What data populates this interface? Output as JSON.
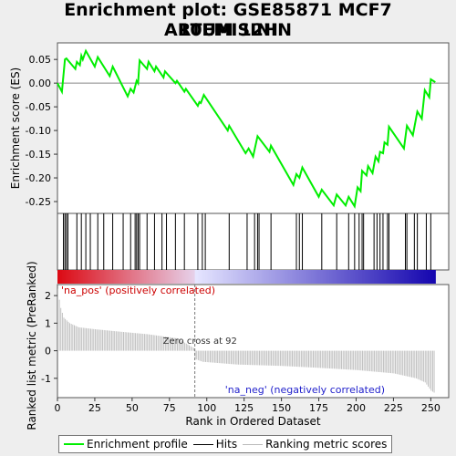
{
  "title_line1": "Enrichment plot: GSE85871 MCF7 ARTEMISININ",
  "title_line2": "10UM 12H",
  "chart_data": {
    "type": "line",
    "top_panel": {
      "ylabel": "Enrichment score (ES)",
      "ylim": [
        -0.275,
        0.085
      ],
      "yticks": [
        0.05,
        0.0,
        -0.05,
        -0.1,
        -0.15,
        -0.2,
        -0.25
      ],
      "ytick_labels": [
        "0.05",
        "0.00",
        "-0.05",
        "-0.10",
        "-0.15",
        "-0.20",
        "-0.25"
      ],
      "series_name": "Enrichment profile",
      "color": "#00ee00",
      "points": [
        [
          0,
          0.0
        ],
        [
          3,
          -0.018
        ],
        [
          5,
          0.05
        ],
        [
          6,
          0.052
        ],
        [
          12,
          0.03
        ],
        [
          13,
          0.045
        ],
        [
          15,
          0.038
        ],
        [
          16,
          0.058
        ],
        [
          17,
          0.05
        ],
        [
          19,
          0.068
        ],
        [
          25,
          0.035
        ],
        [
          27,
          0.055
        ],
        [
          35,
          0.015
        ],
        [
          37,
          0.035
        ],
        [
          47,
          -0.028
        ],
        [
          49,
          -0.012
        ],
        [
          51,
          -0.02
        ],
        [
          53,
          0.005
        ],
        [
          54,
          0.0
        ],
        [
          55,
          0.048
        ],
        [
          60,
          0.03
        ],
        [
          61,
          0.045
        ],
        [
          65,
          0.025
        ],
        [
          66,
          0.035
        ],
        [
          71,
          0.012
        ],
        [
          72,
          0.025
        ],
        [
          79,
          0.0
        ],
        [
          80,
          0.005
        ],
        [
          85,
          -0.018
        ],
        [
          86,
          -0.012
        ],
        [
          94,
          -0.048
        ],
        [
          95,
          -0.04
        ],
        [
          96,
          -0.042
        ],
        [
          98,
          -0.025
        ],
        [
          114,
          -0.1
        ],
        [
          115,
          -0.09
        ],
        [
          126,
          -0.148
        ],
        [
          128,
          -0.138
        ],
        [
          131,
          -0.155
        ],
        [
          134,
          -0.112
        ],
        [
          142,
          -0.145
        ],
        [
          143,
          -0.132
        ],
        [
          158,
          -0.215
        ],
        [
          160,
          -0.192
        ],
        [
          162,
          -0.2
        ],
        [
          164,
          -0.178
        ],
        [
          175,
          -0.24
        ],
        [
          177,
          -0.225
        ],
        [
          185,
          -0.258
        ],
        [
          187,
          -0.235
        ],
        [
          193,
          -0.258
        ],
        [
          195,
          -0.24
        ],
        [
          199,
          -0.26
        ],
        [
          201,
          -0.22
        ],
        [
          203,
          -0.228
        ],
        [
          204,
          -0.185
        ],
        [
          207,
          -0.195
        ],
        [
          208,
          -0.175
        ],
        [
          211,
          -0.19
        ],
        [
          213,
          -0.155
        ],
        [
          215,
          -0.165
        ],
        [
          216,
          -0.145
        ],
        [
          218,
          -0.148
        ],
        [
          219,
          -0.125
        ],
        [
          221,
          -0.13
        ],
        [
          222,
          -0.092
        ],
        [
          232,
          -0.138
        ],
        [
          234,
          -0.09
        ],
        [
          238,
          -0.11
        ],
        [
          241,
          -0.06
        ],
        [
          244,
          -0.075
        ],
        [
          246,
          -0.015
        ],
        [
          249,
          -0.03
        ],
        [
          250,
          0.008
        ],
        [
          253,
          0.002
        ]
      ]
    },
    "hits": [
      4,
      5,
      6,
      7,
      13,
      16,
      19,
      22,
      27,
      31,
      37,
      44,
      49,
      52,
      53,
      54,
      55,
      60,
      65,
      70,
      73,
      79,
      85,
      94,
      97,
      99,
      115,
      127,
      132,
      134,
      135,
      143,
      160,
      162,
      164,
      177,
      187,
      195,
      199,
      202,
      204,
      205,
      212,
      214,
      216,
      218,
      221,
      222,
      233,
      234,
      239,
      241,
      247,
      250
    ],
    "bottom_panel": {
      "ylabel": "Ranked list metric (PreRanked)",
      "xlabel": "Rank in Ordered Dataset",
      "ylim": [
        -1.7,
        2.4
      ],
      "yticks": [
        2,
        1,
        0,
        -1
      ],
      "ytick_labels": [
        "2",
        "1",
        "0",
        "-1"
      ],
      "xticks": [
        0,
        25,
        50,
        75,
        100,
        125,
        150,
        175,
        200,
        225,
        250
      ],
      "xlim": [
        0,
        262
      ],
      "n_ranks": 253,
      "zero_cross": 92,
      "zero_cross_label": "Zero cross at 92",
      "pos_label": "'na_pos' (positively correlated)",
      "neg_label": "'na_neg' (negatively correlated)",
      "metric_anchors": [
        [
          0,
          2.25
        ],
        [
          1,
          1.85
        ],
        [
          2,
          1.55
        ],
        [
          4,
          1.2
        ],
        [
          8,
          1.0
        ],
        [
          14,
          0.85
        ],
        [
          25,
          0.78
        ],
        [
          40,
          0.7
        ],
        [
          60,
          0.6
        ],
        [
          80,
          0.45
        ],
        [
          91,
          0.1
        ],
        [
          92,
          -0.3
        ],
        [
          97,
          -0.4
        ],
        [
          120,
          -0.5
        ],
        [
          150,
          -0.55
        ],
        [
          175,
          -0.62
        ],
        [
          200,
          -0.7
        ],
        [
          225,
          -0.82
        ],
        [
          240,
          -1.0
        ],
        [
          246,
          -1.15
        ],
        [
          250,
          -1.45
        ],
        [
          253,
          -1.55
        ]
      ]
    },
    "legend": [
      "Enrichment profile",
      "Hits",
      "Ranking metric scores"
    ]
  }
}
